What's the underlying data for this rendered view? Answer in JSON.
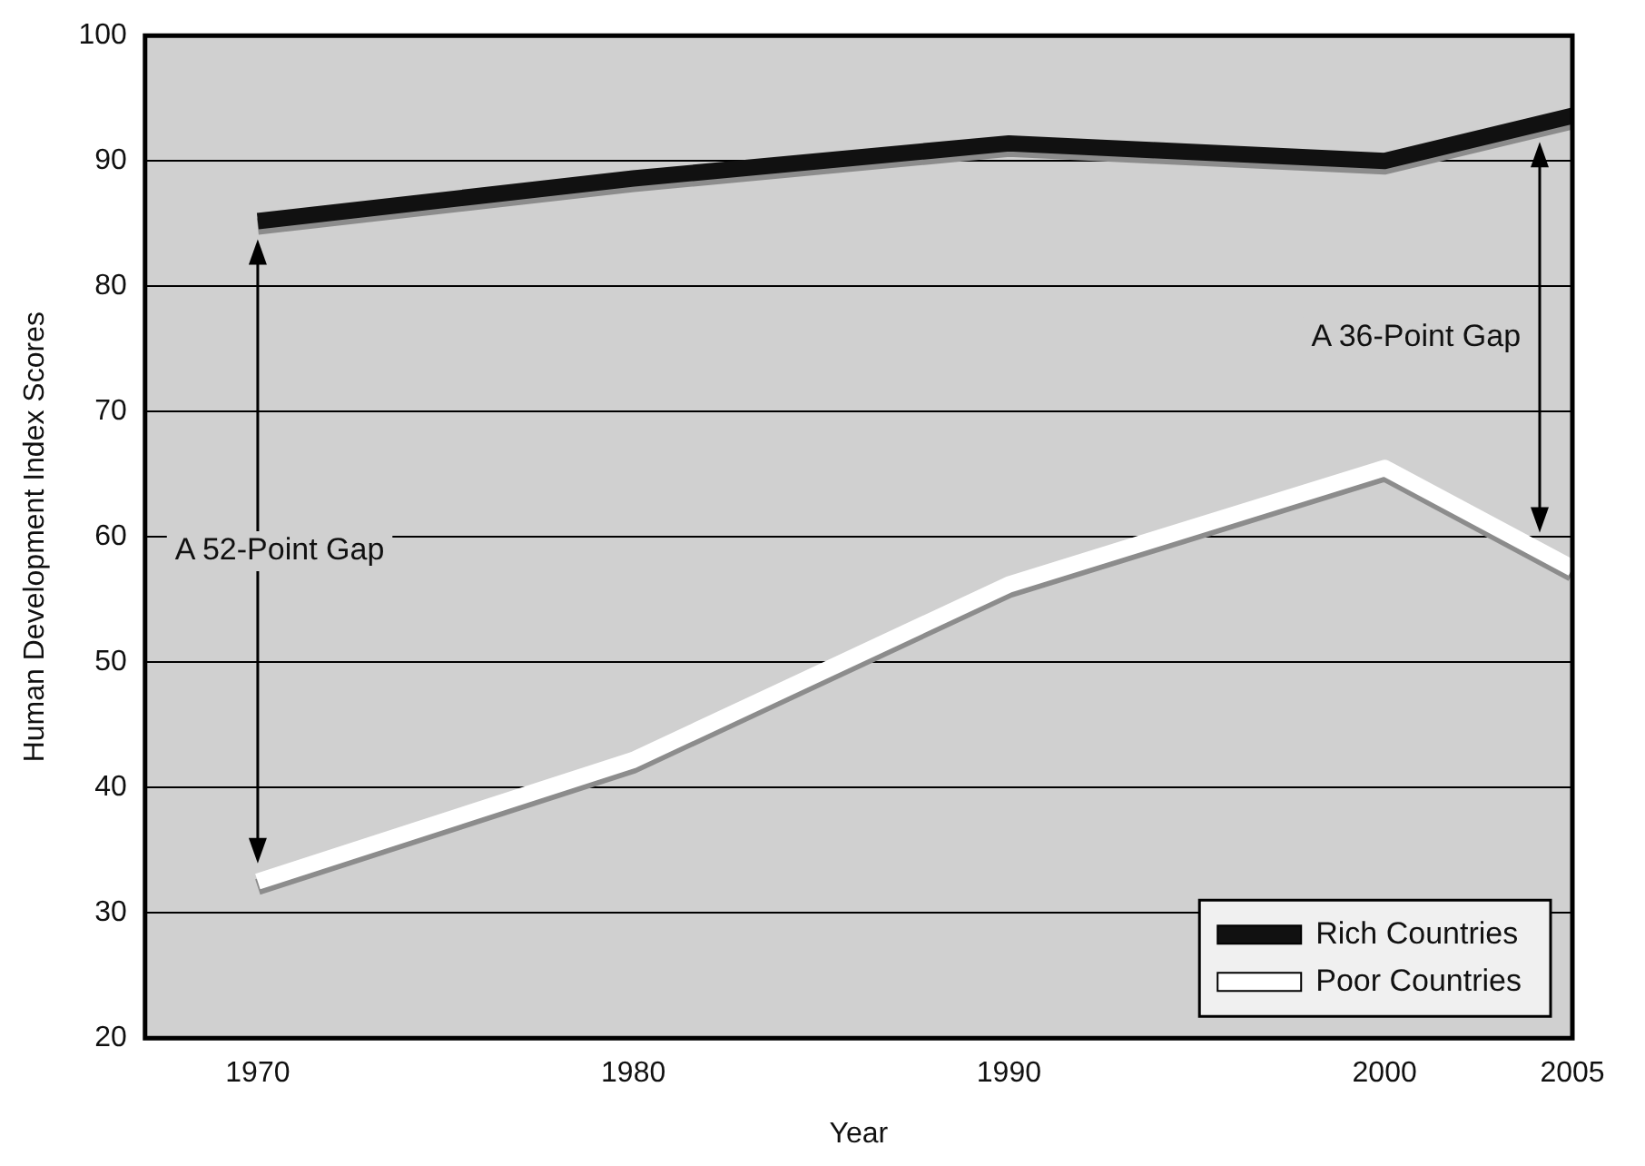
{
  "chart_data": {
    "type": "line",
    "xlabel": "Year",
    "ylabel": "Human Development Index Scores",
    "x": [
      1970,
      1980,
      1990,
      2000,
      2005
    ],
    "series": [
      {
        "name": "Rich Countries",
        "color": "#111111",
        "values": [
          85.2,
          88.6,
          91.4,
          90,
          93.6
        ]
      },
      {
        "name": "Poor Countries",
        "color": "#ffffff",
        "values": [
          32.5,
          42.2,
          56.2,
          65.5,
          57.5
        ]
      }
    ],
    "xlim": [
      1967,
      2005
    ],
    "xticks": [
      1970,
      1980,
      1990,
      2000,
      2005
    ],
    "ylim": [
      20,
      100
    ],
    "yticks": [
      20,
      30,
      40,
      50,
      60,
      70,
      80,
      90,
      100
    ],
    "grid": "y",
    "legend": "bottom right",
    "marker": "none",
    "line_style": "solid",
    "annotations": [
      "A 52-Point Gap",
      "A 36-Point Gap"
    ]
  }
}
